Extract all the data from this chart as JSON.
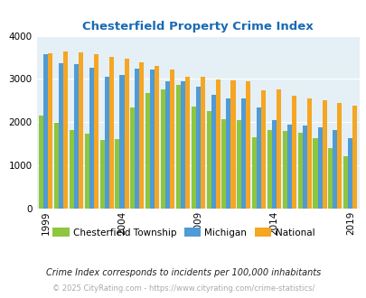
{
  "title": "Chesterfield Property Crime Index",
  "subtitle": "Crime Index corresponds to incidents per 100,000 inhabitants",
  "footer": "© 2025 CityRating.com - https://www.cityrating.com/crime-statistics/",
  "years": [
    1999,
    2000,
    2001,
    2002,
    2003,
    2004,
    2005,
    2006,
    2007,
    2008,
    2009,
    2010,
    2011,
    2012,
    2013,
    2014,
    2015,
    2016,
    2017,
    2018,
    2019
  ],
  "chesterfield": [
    2150,
    1980,
    1820,
    1740,
    1580,
    1600,
    2350,
    2680,
    2760,
    2860,
    2370,
    2250,
    2060,
    2050,
    1650,
    1820,
    1790,
    1750,
    1620,
    1400,
    1210
  ],
  "michigan": [
    3580,
    3370,
    3340,
    3270,
    3060,
    3100,
    3230,
    3220,
    2940,
    2950,
    2820,
    2640,
    2560,
    2550,
    2350,
    2045,
    1940,
    1920,
    1890,
    1810,
    1640
  ],
  "national": [
    3600,
    3640,
    3620,
    3580,
    3520,
    3460,
    3380,
    3310,
    3220,
    3060,
    3050,
    2980,
    2970,
    2940,
    2740,
    2760,
    2620,
    2560,
    2500,
    2450,
    2390
  ],
  "bar_colors": {
    "chesterfield": "#8dc63f",
    "michigan": "#4f9bd5",
    "national": "#f5a623"
  },
  "background_color": "#e4f0f6",
  "ylim": [
    0,
    4000
  ],
  "yticks": [
    0,
    1000,
    2000,
    3000,
    4000
  ],
  "xtick_years": [
    1999,
    2004,
    2009,
    2014,
    2019
  ],
  "title_color": "#1a6ab5",
  "subtitle_color": "#222222",
  "footer_color": "#aaaaaa",
  "legend_labels": [
    "Chesterfield Township",
    "Michigan",
    "National"
  ]
}
